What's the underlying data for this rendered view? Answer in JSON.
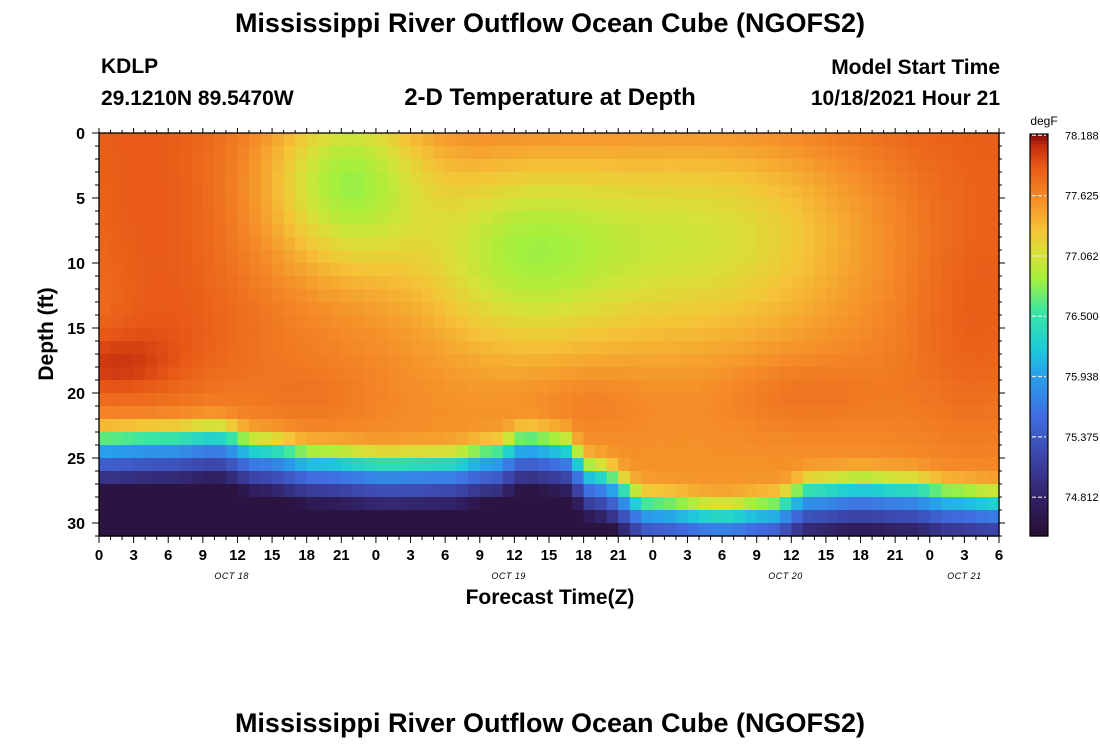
{
  "header": {
    "title": "Mississippi River Outflow Ocean Cube (NGOFS2)",
    "title_repeat": "Mississippi River Outflow Ocean Cube (NGOFS2)",
    "station_id": "KDLP",
    "lat_lon": "29.1210N  89.5470W",
    "subtitle": "2-D Temperature at Depth",
    "model_start_label": "Model Start Time",
    "model_start_value": "10/18/2021 Hour 21"
  },
  "chart_data": {
    "type": "heatmap",
    "xlabel": "Forecast Time(Z)",
    "ylabel": "Depth (ft)",
    "x_range_hours": [
      0,
      78
    ],
    "y_range_ft": [
      0,
      31
    ],
    "y_inverted": true,
    "x_ticks": [
      "0",
      "3",
      "6",
      "9",
      "12",
      "15",
      "18",
      "21",
      "0",
      "3",
      "6",
      "9",
      "12",
      "15",
      "18",
      "21",
      "0",
      "3",
      "6",
      "9",
      "12",
      "15",
      "18",
      "21",
      "0",
      "3",
      "6"
    ],
    "y_ticks": [
      "0",
      "5",
      "10",
      "15",
      "20",
      "25",
      "30"
    ],
    "date_labels": [
      {
        "label": "OCT 18",
        "hour": 11.5
      },
      {
        "label": "OCT 19",
        "hour": 35.5
      },
      {
        "label": "OCT 20",
        "hour": 59.5
      },
      {
        "label": "OCT 21",
        "hour": 75
      }
    ],
    "colorbar": {
      "unit": "degF",
      "min": 74.45,
      "max": 78.2,
      "ticks": [
        "78.188",
        "77.625",
        "77.062",
        "76.500",
        "75.938",
        "75.375",
        "74.812"
      ]
    },
    "thermocline_depth_ft": [
      {
        "hour": 0,
        "depth": 23.0
      },
      {
        "hour": 6,
        "depth": 22.8
      },
      {
        "hour": 10,
        "depth": 22.5
      },
      {
        "hour": 14,
        "depth": 23.5
      },
      {
        "hour": 19,
        "depth": 24.3
      },
      {
        "hour": 25,
        "depth": 24.7
      },
      {
        "hour": 30,
        "depth": 24.6
      },
      {
        "hour": 34,
        "depth": 24.0
      },
      {
        "hour": 37,
        "depth": 23.0
      },
      {
        "hour": 40,
        "depth": 23.3
      },
      {
        "hour": 43,
        "depth": 25.5
      },
      {
        "hour": 48,
        "depth": 28.0
      },
      {
        "hour": 54,
        "depth": 28.6
      },
      {
        "hour": 58,
        "depth": 28.2
      },
      {
        "hour": 62,
        "depth": 26.7
      },
      {
        "hour": 66,
        "depth": 26.4
      },
      {
        "hour": 70,
        "depth": 26.6
      },
      {
        "hour": 74,
        "depth": 27.2
      },
      {
        "hour": 78,
        "depth": 27.5
      }
    ],
    "surface_cool_core": {
      "hour": 21.5,
      "depth": 3.5,
      "temp": 76.95
    },
    "warm_core": {
      "hour": 0.5,
      "depth": 18,
      "temp": 78.15
    }
  }
}
